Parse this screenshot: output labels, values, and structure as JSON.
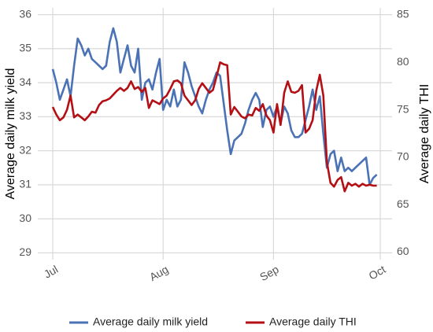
{
  "chart_data": {
    "type": "line",
    "ylabel": "Average daily milk yield",
    "y2label": "Average daily THI",
    "x": [
      0,
      1,
      2,
      3,
      4,
      5,
      6,
      7,
      8,
      9,
      10,
      11,
      12,
      13,
      14,
      15,
      16,
      17,
      18,
      19,
      20,
      21,
      22,
      23,
      24,
      25,
      26,
      27,
      28,
      29,
      30,
      31,
      32,
      33,
      34,
      35,
      36,
      37,
      38,
      39,
      40,
      41,
      42,
      43,
      44,
      45,
      46,
      47,
      48,
      49,
      50,
      51,
      52,
      53,
      54,
      55,
      56,
      57,
      58,
      59,
      60,
      61,
      62,
      63,
      64,
      65,
      66,
      67,
      68,
      69,
      70,
      71,
      72,
      73,
      74,
      75,
      76,
      77,
      78,
      79,
      80,
      81,
      82,
      83,
      84,
      85,
      86,
      87,
      88,
      89,
      90,
      91
    ],
    "xlim": [
      -4.2,
      95.3
    ],
    "xticks": [
      {
        "value": 0,
        "label": "Jul"
      },
      {
        "value": 31,
        "label": "Aug"
      },
      {
        "value": 62,
        "label": "Sep"
      },
      {
        "value": 92,
        "label": "Oct"
      }
    ],
    "ylim": [
      28.8,
      36.2
    ],
    "yticks": [
      29,
      30,
      31,
      32,
      33,
      34,
      35,
      36
    ],
    "y2lim": [
      59.2,
      85.75
    ],
    "y2ticks": [
      60,
      65,
      70,
      75,
      80,
      85
    ],
    "grid": true,
    "legend": "bottom",
    "series": [
      {
        "name": "Average daily milk yield",
        "color": "#4a72b5",
        "values": [
          34.4,
          34.0,
          33.5,
          33.8,
          34.1,
          33.6,
          34.5,
          35.3,
          35.1,
          34.8,
          35.0,
          34.7,
          34.6,
          34.5,
          34.4,
          34.5,
          35.2,
          35.6,
          35.2,
          34.3,
          34.7,
          35.1,
          34.5,
          34.3,
          35.0,
          33.5,
          34.0,
          34.1,
          33.8,
          34.3,
          34.7,
          33.2,
          33.5,
          33.3,
          33.8,
          33.3,
          33.5,
          34.6,
          34.3,
          33.9,
          33.6,
          33.3,
          33.1,
          33.5,
          33.8,
          34.0,
          34.3,
          34.2,
          33.4,
          32.6,
          31.9,
          32.3,
          32.4,
          32.5,
          32.8,
          33.2,
          33.5,
          33.7,
          33.5,
          32.7,
          33.2,
          33.3,
          33.0,
          33.3,
          32.8,
          33.3,
          33.1,
          32.6,
          32.4,
          32.4,
          32.5,
          32.9,
          33.3,
          33.8,
          33.2,
          33.6,
          32.5,
          31.5,
          31.9,
          32.0,
          31.4,
          31.8,
          31.4,
          31.5,
          31.4,
          31.5,
          31.6,
          31.7,
          31.8,
          31.0,
          31.2,
          31.3
        ]
      },
      {
        "name": "Average daily THI",
        "color": "#b30f14",
        "axis": "y2",
        "values": [
          75.3,
          74.5,
          73.9,
          74.2,
          75.0,
          76.5,
          74.2,
          74.5,
          74.2,
          73.9,
          74.3,
          74.8,
          74.7,
          75.5,
          75.9,
          76.0,
          76.2,
          76.6,
          77.0,
          77.3,
          77.0,
          77.3,
          78.0,
          77.2,
          77.4,
          76.9,
          77.3,
          75.2,
          76.0,
          75.8,
          75.6,
          76.2,
          76.5,
          77.2,
          78.0,
          78.1,
          77.8,
          76.5,
          76.0,
          75.5,
          76.0,
          77.2,
          77.8,
          77.3,
          76.8,
          77.1,
          78.5,
          80.0,
          79.8,
          79.7,
          74.5,
          75.3,
          74.8,
          74.3,
          74.1,
          74.5,
          74.4,
          75.2,
          74.9,
          75.6,
          74.4,
          73.9,
          72.6,
          75.6,
          73.4,
          76.8,
          78.0,
          76.9,
          76.8,
          77.0,
          77.6,
          72.6,
          73.0,
          73.9,
          77.0,
          78.7,
          76.5,
          69.5,
          67.3,
          66.9,
          67.6,
          67.9,
          66.4,
          67.3,
          67.0,
          67.2,
          66.9,
          67.2,
          67.0,
          67.1,
          67.0,
          67.0
        ]
      }
    ]
  }
}
